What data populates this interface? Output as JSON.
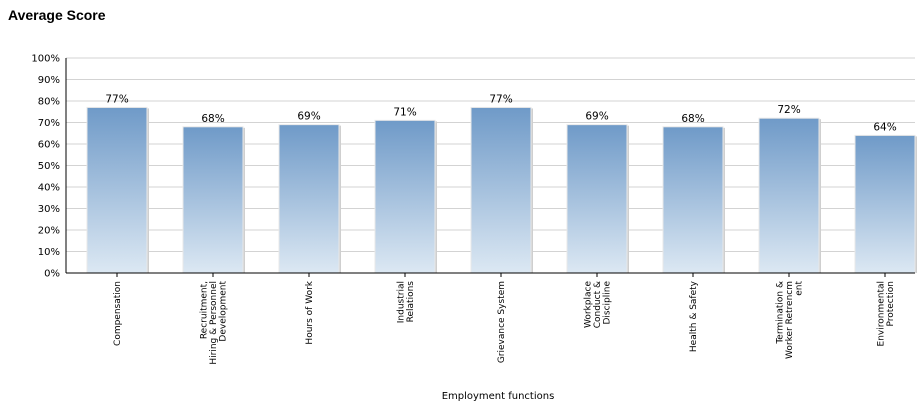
{
  "chart_data": {
    "type": "bar",
    "title": "Average Score",
    "xlabel": "Employment functions",
    "ylabel": "",
    "ylim": [
      0,
      100
    ],
    "yticks": [
      "0%",
      "10%",
      "20%",
      "30%",
      "40%",
      "50%",
      "60%",
      "70%",
      "80%",
      "90%",
      "100%"
    ],
    "categories": [
      [
        "Compensation"
      ],
      [
        "Recruitment,",
        "Hiring & Personnel",
        "Development"
      ],
      [
        "Hours of Work"
      ],
      [
        "Industrial",
        "Relations"
      ],
      [
        "Grievance System"
      ],
      [
        "Workplace",
        "Conduct &",
        "Discipline"
      ],
      [
        "Health & Safety"
      ],
      [
        "Termination &",
        "Worker Retrencm",
        "ent"
      ],
      [
        "Environmental",
        "Protection"
      ]
    ],
    "values": [
      77,
      68,
      69,
      71,
      77,
      69,
      68,
      72,
      64
    ],
    "data_labels": [
      "77%",
      "68%",
      "69%",
      "71%",
      "77%",
      "69%",
      "68%",
      "72%",
      "64%"
    ],
    "grid": true,
    "legend": "none",
    "bar_gradient": [
      "#6f9ac8",
      "#dce8f3"
    ]
  }
}
